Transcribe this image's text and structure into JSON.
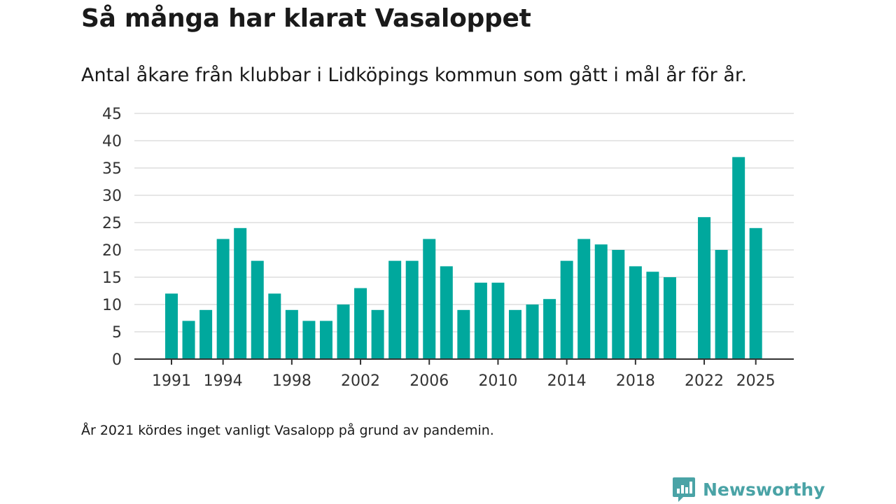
{
  "title": "Så många har klarat Vasaloppet",
  "subtitle": "Antal åkare från klubbar i Lidköpings kommun som gått i mål år för år.",
  "note": "År 2021 kördes inget vanligt Vasalopp på grund av pandemin.",
  "brand": {
    "name": "Newsworthy",
    "icon": "newsworthy-logo-icon"
  },
  "colors": {
    "bar": "#00a89d",
    "grid": "#dddddd",
    "axis": "#333333",
    "brand": "#4aa3a6"
  },
  "chart_data": {
    "type": "bar",
    "title": "Så många har klarat Vasaloppet",
    "xlabel": "",
    "ylabel": "",
    "ylim": [
      0,
      45
    ],
    "yticks": [
      0,
      5,
      10,
      15,
      20,
      25,
      30,
      35,
      40,
      45
    ],
    "xticks": [
      1991,
      1994,
      1998,
      2002,
      2006,
      2010,
      2014,
      2018,
      2022,
      2025
    ],
    "x_range": [
      1991,
      2025
    ],
    "categories": [
      1991,
      1992,
      1993,
      1994,
      1995,
      1996,
      1997,
      1998,
      1999,
      2000,
      2001,
      2002,
      2003,
      2004,
      2005,
      2006,
      2007,
      2008,
      2009,
      2010,
      2011,
      2012,
      2013,
      2014,
      2015,
      2016,
      2017,
      2018,
      2019,
      2020,
      2021,
      2022,
      2023,
      2024,
      2025
    ],
    "values": [
      12,
      7,
      9,
      22,
      24,
      18,
      12,
      9,
      7,
      7,
      10,
      13,
      9,
      18,
      18,
      22,
      17,
      9,
      14,
      14,
      9,
      10,
      11,
      18,
      22,
      21,
      20,
      17,
      16,
      15,
      null,
      26,
      20,
      37,
      24
    ]
  }
}
